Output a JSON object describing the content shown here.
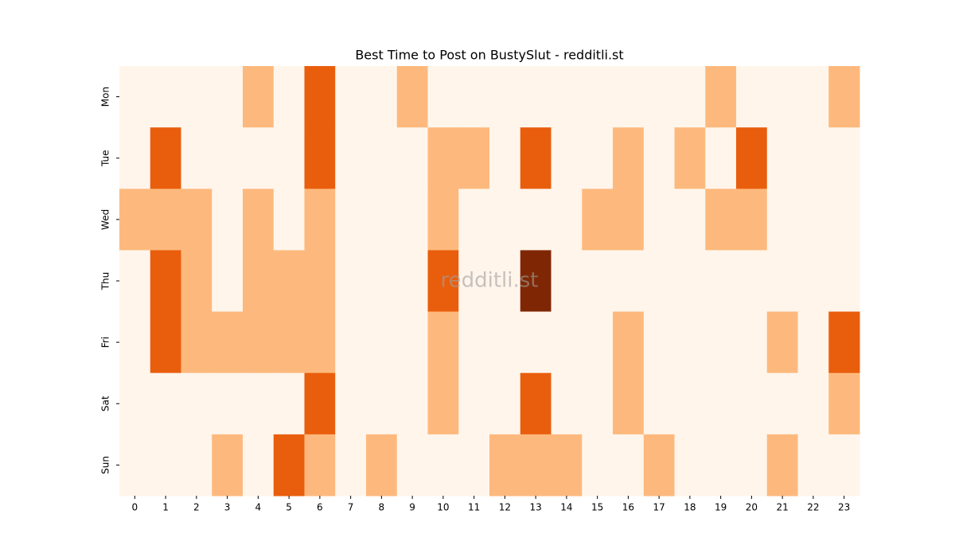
{
  "chart_data": {
    "type": "heatmap",
    "title": "Best Time to Post on BustySlut - redditli.st",
    "watermark": "redditli.st",
    "x": [
      0,
      1,
      2,
      3,
      4,
      5,
      6,
      7,
      8,
      9,
      10,
      11,
      12,
      13,
      14,
      15,
      16,
      17,
      18,
      19,
      20,
      21,
      22,
      23
    ],
    "y": [
      "Mon",
      "Tue",
      "Wed",
      "Thu",
      "Fri",
      "Sat",
      "Sun"
    ],
    "colors": [
      "#fff5eb",
      "#fdb97d",
      "#e95e0d",
      "#7f2704"
    ],
    "values": [
      [
        0,
        0,
        0,
        0,
        1,
        0,
        2,
        0,
        0,
        1,
        0,
        0,
        0,
        0,
        0,
        0,
        0,
        0,
        0,
        1,
        0,
        0,
        0,
        1
      ],
      [
        0,
        2,
        0,
        0,
        0,
        0,
        2,
        0,
        0,
        0,
        1,
        1,
        0,
        2,
        0,
        0,
        1,
        0,
        1,
        0,
        2,
        0,
        0,
        0
      ],
      [
        1,
        1,
        1,
        0,
        1,
        0,
        1,
        0,
        0,
        0,
        1,
        0,
        0,
        0,
        0,
        1,
        1,
        0,
        0,
        1,
        1,
        0,
        0,
        0
      ],
      [
        0,
        2,
        1,
        0,
        1,
        1,
        1,
        0,
        0,
        0,
        2,
        0,
        0,
        3,
        0,
        0,
        0,
        0,
        0,
        0,
        0,
        0,
        0,
        0
      ],
      [
        0,
        2,
        1,
        1,
        1,
        1,
        1,
        0,
        0,
        0,
        1,
        0,
        0,
        0,
        0,
        0,
        1,
        0,
        0,
        0,
        0,
        1,
        0,
        2
      ],
      [
        0,
        0,
        0,
        0,
        0,
        0,
        2,
        0,
        0,
        0,
        1,
        0,
        0,
        2,
        0,
        0,
        1,
        0,
        0,
        0,
        0,
        0,
        0,
        1
      ],
      [
        0,
        0,
        0,
        1,
        0,
        2,
        1,
        0,
        1,
        0,
        0,
        0,
        1,
        1,
        1,
        0,
        0,
        1,
        0,
        0,
        0,
        1,
        0,
        0
      ]
    ]
  }
}
